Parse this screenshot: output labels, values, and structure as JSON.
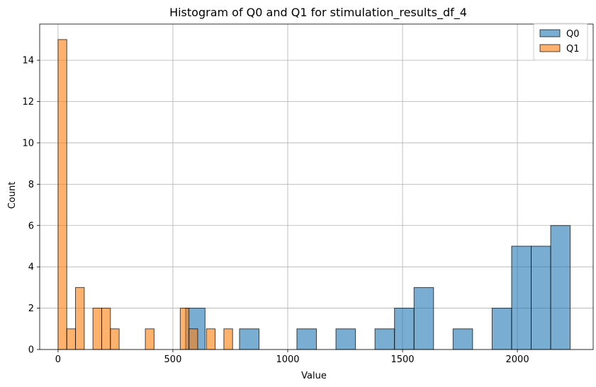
{
  "chart_data": {
    "type": "bar",
    "title": "Histogram of Q0 and Q1 for stimulation_results_df_4",
    "xlabel": "Value",
    "ylabel": "Count",
    "xlim": [
      -80,
      2330
    ],
    "ylim": [
      0,
      15.75
    ],
    "xticks": [
      0,
      500,
      1000,
      1500,
      2000
    ],
    "xtick_labels": [
      "0",
      "500",
      "1000",
      "1500",
      "2000"
    ],
    "yticks": [
      0,
      2,
      4,
      6,
      8,
      10,
      12,
      14
    ],
    "ytick_labels": [
      "0",
      "2",
      "4",
      "6",
      "8",
      "10",
      "12",
      "14"
    ],
    "grid": true,
    "legend_position": "top-right",
    "series": [
      {
        "name": "Q0",
        "color": "#1f77b4",
        "bins": [
          {
            "x0": 555,
            "x1": 640,
            "count": 2
          },
          {
            "x0": 790,
            "x1": 875,
            "count": 1
          },
          {
            "x0": 1040,
            "x1": 1125,
            "count": 1
          },
          {
            "x0": 1210,
            "x1": 1295,
            "count": 1
          },
          {
            "x0": 1380,
            "x1": 1465,
            "count": 1
          },
          {
            "x0": 1465,
            "x1": 1550,
            "count": 2
          },
          {
            "x0": 1550,
            "x1": 1635,
            "count": 3
          },
          {
            "x0": 1720,
            "x1": 1805,
            "count": 1
          },
          {
            "x0": 1890,
            "x1": 1975,
            "count": 2
          },
          {
            "x0": 1975,
            "x1": 2060,
            "count": 5
          },
          {
            "x0": 2060,
            "x1": 2145,
            "count": 5
          },
          {
            "x0": 2145,
            "x1": 2230,
            "count": 6
          }
        ]
      },
      {
        "name": "Q1",
        "color": "#ff7f0e",
        "bins": [
          {
            "x0": 0,
            "x1": 38,
            "count": 15
          },
          {
            "x0": 38,
            "x1": 76,
            "count": 1
          },
          {
            "x0": 76,
            "x1": 114,
            "count": 3
          },
          {
            "x0": 152,
            "x1": 190,
            "count": 2
          },
          {
            "x0": 190,
            "x1": 228,
            "count": 2
          },
          {
            "x0": 228,
            "x1": 266,
            "count": 1
          },
          {
            "x0": 380,
            "x1": 418,
            "count": 1
          },
          {
            "x0": 532,
            "x1": 570,
            "count": 2
          },
          {
            "x0": 570,
            "x1": 608,
            "count": 1
          },
          {
            "x0": 646,
            "x1": 684,
            "count": 1
          },
          {
            "x0": 722,
            "x1": 760,
            "count": 1
          }
        ]
      }
    ]
  }
}
